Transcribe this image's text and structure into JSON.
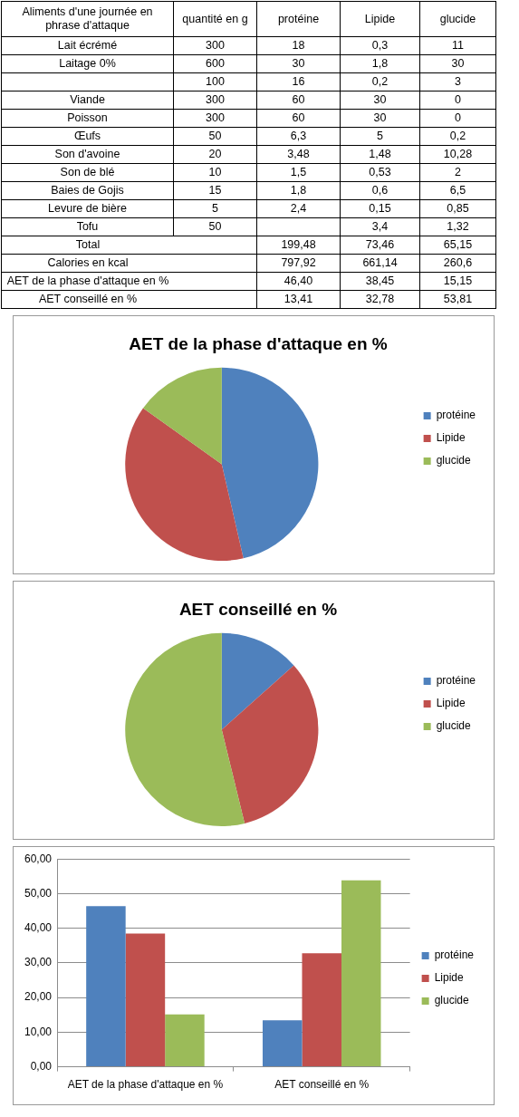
{
  "chart_data": [
    {
      "type": "heatmap",
      "ylabel": "Aliments d'une journée en phrase d'attaque",
      "categories": [
        "quantité en g",
        "protéine",
        "Lipide",
        "glucide"
      ],
      "y_categories": [
        "Lait écrémé",
        "Laitage 0%",
        null,
        "Viande",
        "Poisson",
        "Œufs",
        "Son d'avoine",
        "Son de blé",
        "Baies de Gojis",
        "Levure de bière",
        "Tofu",
        "Total",
        "Calories en kcal",
        "AET de la phase d'attaque en %",
        "AET conseillé en %"
      ],
      "cells": [
        [
          300,
          18,
          0.3,
          11
        ],
        [
          600,
          30,
          1.8,
          30
        ],
        [
          100,
          16,
          0.2,
          3
        ],
        [
          300,
          60,
          30,
          0
        ],
        [
          300,
          60,
          30,
          0
        ],
        [
          50,
          6.3,
          5,
          0.2
        ],
        [
          20,
          3.48,
          1.48,
          10.28
        ],
        [
          10,
          1.5,
          0.53,
          2
        ],
        [
          15,
          1.8,
          0.6,
          6.5
        ],
        [
          5,
          2.4,
          0.15,
          0.85
        ],
        [
          50,
          null,
          3.4,
          1.32
        ],
        [
          null,
          199.48,
          73.46,
          65.15
        ],
        [
          null,
          797.92,
          661.14,
          260.6
        ],
        [
          null,
          46.4,
          38.45,
          15.15
        ],
        [
          null,
          13.41,
          32.78,
          53.81
        ]
      ],
      "cell_labels": [
        [
          "300",
          "18",
          "0,3",
          "11"
        ],
        [
          "600",
          "30",
          "1,8",
          "30"
        ],
        [
          "100",
          "16",
          "0,2",
          "3"
        ],
        [
          "300",
          "60",
          "30",
          "0"
        ],
        [
          "300",
          "60",
          "30",
          "0"
        ],
        [
          "50",
          "6,3",
          "5",
          "0,2"
        ],
        [
          "20",
          "3,48",
          "1,48",
          "10,28"
        ],
        [
          "10",
          "1,5",
          "0,53",
          "2"
        ],
        [
          "15",
          "1,8",
          "0,6",
          "6,5"
        ],
        [
          "5",
          "2,4",
          "0,15",
          "0,85"
        ],
        [
          "50",
          null,
          "3,4",
          "1,32"
        ],
        [
          null,
          "199,48",
          "73,46",
          "65,15"
        ],
        [
          null,
          "797,92",
          "661,14",
          "260,6"
        ],
        [
          null,
          "46,40",
          "38,45",
          "15,15"
        ],
        [
          null,
          "13,41",
          "32,78",
          "53,81"
        ]
      ]
    },
    {
      "type": "pie",
      "title": "AET de la phase d'attaque en %",
      "categories": [
        "protéine",
        "Lipide",
        "glucide"
      ],
      "values": [
        46.4,
        38.45,
        15.15
      ],
      "colors": [
        "#4f81bd",
        "#c0504d",
        "#9bbb59"
      ],
      "legend": "right"
    },
    {
      "type": "pie",
      "title": "AET conseillé en %",
      "categories": [
        "protéine",
        "Lipide",
        "glucide"
      ],
      "values": [
        13.41,
        32.78,
        53.81
      ],
      "colors": [
        "#4f81bd",
        "#c0504d",
        "#9bbb59"
      ],
      "legend": "right"
    },
    {
      "type": "bar",
      "categories": [
        "AET de la phase d'attaque en %",
        "AET conseillé en %"
      ],
      "series": [
        {
          "name": "protéine",
          "color": "#4f81bd",
          "values": [
            46.4,
            13.41
          ]
        },
        {
          "name": "Lipide",
          "color": "#c0504d",
          "values": [
            38.45,
            32.78
          ]
        },
        {
          "name": "glucide",
          "color": "#9bbb59",
          "values": [
            15.15,
            53.81
          ]
        }
      ],
      "ylim": [
        0,
        60
      ],
      "yticks": [
        {
          "value": 0,
          "label": "0,00"
        },
        {
          "value": 10,
          "label": "10,00"
        },
        {
          "value": 20,
          "label": "20,00"
        },
        {
          "value": 30,
          "label": "30,00"
        },
        {
          "value": 40,
          "label": "40,00"
        },
        {
          "value": 50,
          "label": "50,00"
        },
        {
          "value": 60,
          "label": "60,00"
        }
      ],
      "grid": "y",
      "legend": "right"
    }
  ]
}
